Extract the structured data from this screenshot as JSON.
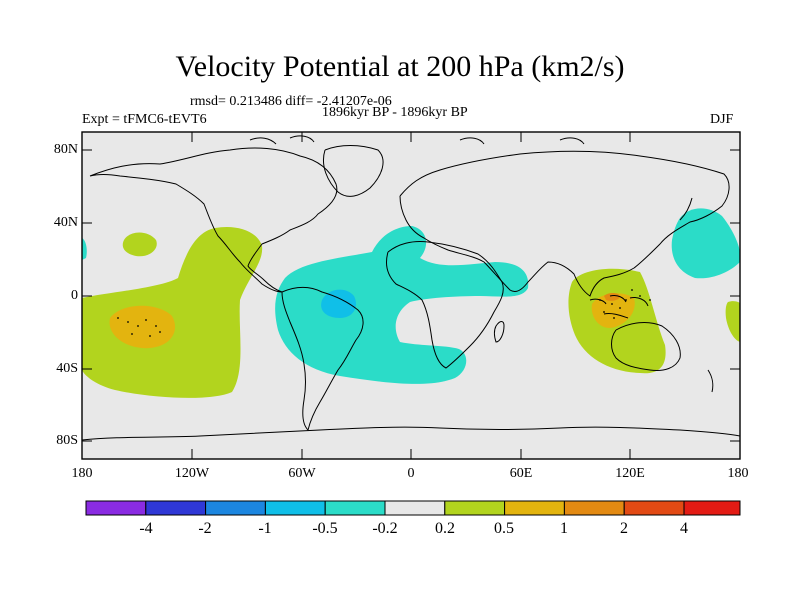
{
  "title": "Velocity Potential at 200 hPa (km2/s)",
  "stats": "rmsd= 0.213486 diff= -2.41207e-06",
  "experiment": "Expt = tFMC6-tEVT6",
  "period": "1896kyr BP - 1896kyr BP",
  "season": "DJF",
  "axes": {
    "y_ticks": [
      "80N",
      "40N",
      "0",
      "40S",
      "80S"
    ],
    "x_ticks": [
      "180",
      "120W",
      "60W",
      "0",
      "60E",
      "120E",
      "180"
    ]
  },
  "colorbar": {
    "labels": [
      "-4",
      "-2",
      "-1",
      "-0.5",
      "-0.2",
      "0.2",
      "0.5",
      "1",
      "2",
      "4"
    ],
    "colors": [
      "#8a2be2",
      "#2f38d6",
      "#1c86e0",
      "#10bfe8",
      "#2bdcc8",
      "#e8e8e8",
      "#b2d41e",
      "#e3b40f",
      "#e38a12",
      "#e24a14",
      "#e31b14"
    ]
  },
  "fill_colors": {
    "neutral": "#e8e8e8",
    "teal": "#2bdcc8",
    "blue": "#10bfe8",
    "lime": "#b2d41e",
    "gold": "#e3b40f",
    "orange": "#e38a12"
  }
}
